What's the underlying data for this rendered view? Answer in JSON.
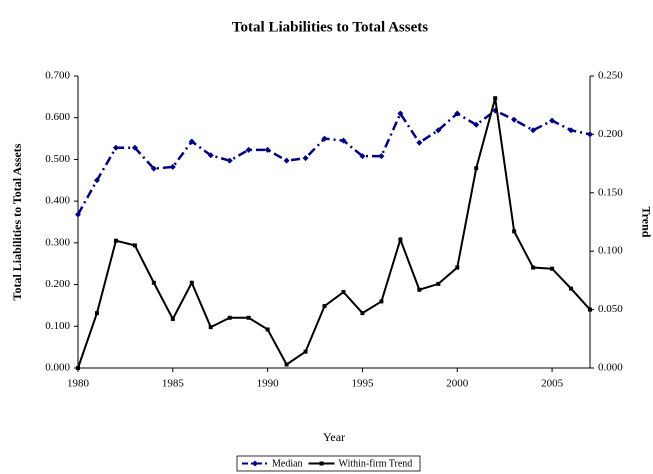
{
  "chart_data": {
    "type": "line",
    "title": "Total Liabilities to Total Assets",
    "x_label": "Year",
    "y_label": "Total Liabilities to Total Assets",
    "y2_label": "Trend",
    "x": [
      1980,
      1981,
      1982,
      1983,
      1984,
      1985,
      1986,
      1987,
      1988,
      1989,
      1990,
      1991,
      1992,
      1993,
      1994,
      1995,
      1996,
      1997,
      1998,
      1999,
      2000,
      2001,
      2002,
      2003,
      2004,
      2005,
      2006,
      2007
    ],
    "xlim": [
      1980,
      2007
    ],
    "xticks": [
      1980,
      1985,
      1990,
      1995,
      2000,
      2005
    ],
    "ylim": [
      0,
      0.7
    ],
    "yticks": [
      {
        "value": 0,
        "label": "0.000"
      },
      {
        "value": 0.1,
        "label": "0.100"
      },
      {
        "value": 0.2,
        "label": "0.200"
      },
      {
        "value": 0.3,
        "label": "0.300"
      },
      {
        "value": 0.4,
        "label": "0.400"
      },
      {
        "value": 0.5,
        "label": "0.500"
      },
      {
        "value": 0.6,
        "label": "0.600"
      },
      {
        "value": 0.7,
        "label": "0.700"
      }
    ],
    "y2lim": [
      0,
      0.25
    ],
    "y2ticks": [
      {
        "value": 0,
        "label": "0.000"
      },
      {
        "value": 0.05,
        "label": "0.050"
      },
      {
        "value": 0.1,
        "label": "0.100"
      },
      {
        "value": 0.15,
        "label": "0.150"
      },
      {
        "value": 0.2,
        "label": "0.200"
      },
      {
        "value": 0.25,
        "label": "0.250"
      }
    ],
    "legend": "bottom",
    "series": [
      {
        "name": "Median",
        "color": "#000080",
        "dash": true,
        "values": [
          0.368,
          0.45,
          0.528,
          0.528,
          0.478,
          0.482,
          0.543,
          0.51,
          0.497,
          0.523,
          0.523,
          0.497,
          0.503,
          0.55,
          0.545,
          0.508,
          0.508,
          0.61,
          0.54,
          0.57,
          0.61,
          0.583,
          0.617,
          0.595,
          0.57,
          0.593,
          0.57,
          0.56
        ]
      },
      {
        "name": "Within-firm Trend",
        "color": "#000000",
        "dash": false,
        "axis": "y2",
        "values": [
          0,
          0.047,
          0.109,
          0.105,
          0.073,
          0.042,
          0.073,
          0.035,
          0.043,
          0.043,
          0.033,
          0.003,
          0.014,
          0.053,
          0.065,
          0.047,
          0.057,
          0.11,
          0.067,
          0.072,
          0.086,
          0.171,
          0.231,
          0.117,
          0.086,
          0.085,
          0.068,
          0.05
        ]
      }
    ]
  }
}
